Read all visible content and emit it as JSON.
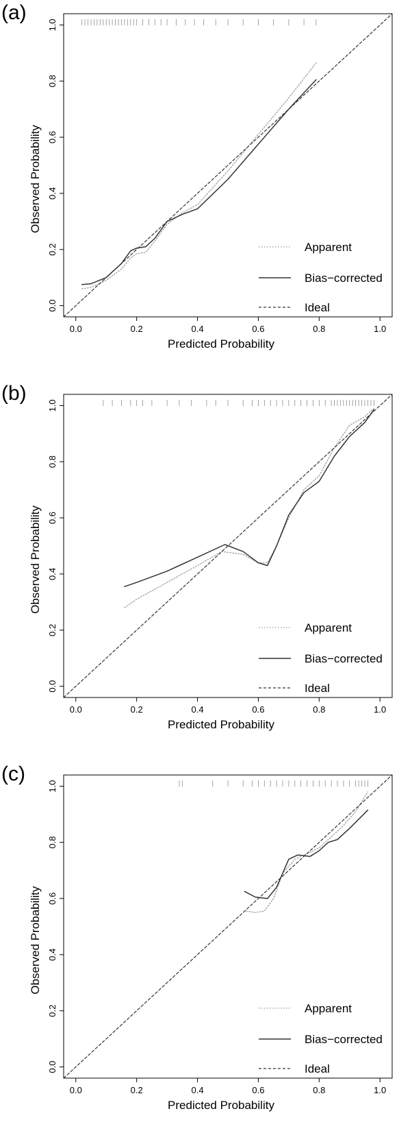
{
  "chart_data": [
    {
      "panel_label": "(a)",
      "type": "line",
      "xlabel": "Predicted Probability",
      "ylabel": "Observed  Probability",
      "xlim": [
        -0.04,
        1.04
      ],
      "ylim": [
        -0.04,
        1.04
      ],
      "x_ticks": [
        "0.0",
        "0.2",
        "0.4",
        "0.6",
        "0.8",
        "1.0"
      ],
      "y_ticks": [
        "0.0",
        "0.2",
        "0.4",
        "0.6",
        "0.8",
        "1.0"
      ],
      "legend_position": "bottom-right",
      "series": [
        {
          "name": "Apparent",
          "style": "dotted",
          "x": [
            0.02,
            0.05,
            0.1,
            0.15,
            0.18,
            0.2,
            0.23,
            0.26,
            0.3,
            0.35,
            0.4,
            0.5,
            0.6,
            0.7,
            0.79
          ],
          "y": [
            0.06,
            0.065,
            0.09,
            0.13,
            0.17,
            0.185,
            0.19,
            0.23,
            0.29,
            0.33,
            0.36,
            0.48,
            0.61,
            0.74,
            0.865
          ]
        },
        {
          "name": "Bias−corrected",
          "style": "solid",
          "x": [
            0.02,
            0.05,
            0.1,
            0.15,
            0.18,
            0.2,
            0.23,
            0.26,
            0.3,
            0.35,
            0.4,
            0.5,
            0.6,
            0.7,
            0.79
          ],
          "y": [
            0.075,
            0.078,
            0.1,
            0.15,
            0.195,
            0.205,
            0.21,
            0.24,
            0.3,
            0.325,
            0.345,
            0.45,
            0.575,
            0.7,
            0.805
          ]
        },
        {
          "name": "Ideal",
          "style": "dashed",
          "x": [
            -0.04,
            1.04
          ],
          "y": [
            -0.04,
            1.04
          ]
        }
      ],
      "rug": [
        0.02,
        0.03,
        0.04,
        0.05,
        0.06,
        0.07,
        0.08,
        0.09,
        0.1,
        0.11,
        0.12,
        0.13,
        0.14,
        0.15,
        0.16,
        0.17,
        0.18,
        0.19,
        0.2,
        0.22,
        0.24,
        0.26,
        0.28,
        0.3,
        0.33,
        0.36,
        0.39,
        0.42,
        0.46,
        0.5,
        0.55,
        0.6,
        0.65,
        0.7,
        0.75,
        0.79
      ]
    },
    {
      "panel_label": "(b)",
      "type": "line",
      "xlabel": "Predicted Probability",
      "ylabel": "Observed  Probability",
      "xlim": [
        -0.04,
        1.04
      ],
      "ylim": [
        -0.04,
        1.04
      ],
      "x_ticks": [
        "0.0",
        "0.2",
        "0.4",
        "0.6",
        "0.8",
        "1.0"
      ],
      "y_ticks": [
        "0.0",
        "0.2",
        "0.4",
        "0.6",
        "0.8",
        "1.0"
      ],
      "legend_position": "bottom-right",
      "series": [
        {
          "name": "Apparent",
          "style": "dotted",
          "x": [
            0.16,
            0.2,
            0.3,
            0.4,
            0.48,
            0.55,
            0.6,
            0.63,
            0.66,
            0.7,
            0.75,
            0.8,
            0.85,
            0.9,
            0.95,
            0.98
          ],
          "y": [
            0.28,
            0.31,
            0.37,
            0.43,
            0.48,
            0.47,
            0.44,
            0.44,
            0.5,
            0.6,
            0.7,
            0.75,
            0.85,
            0.93,
            0.96,
            0.99
          ]
        },
        {
          "name": "Bias−corrected",
          "style": "solid",
          "x": [
            0.16,
            0.2,
            0.3,
            0.4,
            0.49,
            0.55,
            0.6,
            0.63,
            0.66,
            0.7,
            0.75,
            0.8,
            0.85,
            0.9,
            0.95,
            0.98
          ],
          "y": [
            0.355,
            0.37,
            0.41,
            0.46,
            0.505,
            0.48,
            0.44,
            0.43,
            0.5,
            0.61,
            0.69,
            0.73,
            0.82,
            0.89,
            0.94,
            0.985
          ]
        },
        {
          "name": "Ideal",
          "style": "dashed",
          "x": [
            -0.04,
            1.04
          ],
          "y": [
            -0.04,
            1.04
          ]
        }
      ],
      "rug": [
        0.09,
        0.12,
        0.15,
        0.18,
        0.2,
        0.22,
        0.25,
        0.3,
        0.34,
        0.38,
        0.43,
        0.46,
        0.5,
        0.55,
        0.58,
        0.6,
        0.62,
        0.64,
        0.66,
        0.68,
        0.7,
        0.72,
        0.74,
        0.76,
        0.78,
        0.8,
        0.82,
        0.84,
        0.85,
        0.86,
        0.87,
        0.88,
        0.89,
        0.9,
        0.91,
        0.92,
        0.93,
        0.94,
        0.95,
        0.96,
        0.97,
        0.98
      ]
    },
    {
      "panel_label": "(c)",
      "type": "line",
      "xlabel": "Predicted Probability",
      "ylabel": "Observed  Probability",
      "xlim": [
        -0.04,
        1.04
      ],
      "ylim": [
        -0.04,
        1.04
      ],
      "x_ticks": [
        "0.0",
        "0.2",
        "0.4",
        "0.6",
        "0.8",
        "1.0"
      ],
      "y_ticks": [
        "0.0",
        "0.2",
        "0.4",
        "0.6",
        "0.8",
        "1.0"
      ],
      "legend_position": "bottom-right",
      "series": [
        {
          "name": "Apparent",
          "style": "dotted",
          "x": [
            0.56,
            0.59,
            0.62,
            0.65,
            0.68,
            0.72,
            0.76,
            0.8,
            0.84,
            0.88,
            0.92,
            0.96
          ],
          "y": [
            0.555,
            0.55,
            0.555,
            0.6,
            0.69,
            0.74,
            0.76,
            0.78,
            0.82,
            0.86,
            0.91,
            0.98
          ]
        },
        {
          "name": "Bias−corrected",
          "style": "solid",
          "x": [
            0.555,
            0.59,
            0.63,
            0.66,
            0.7,
            0.73,
            0.77,
            0.8,
            0.83,
            0.86,
            0.9,
            0.96
          ],
          "y": [
            0.625,
            0.605,
            0.6,
            0.64,
            0.74,
            0.755,
            0.75,
            0.77,
            0.8,
            0.81,
            0.85,
            0.915
          ]
        },
        {
          "name": "Ideal",
          "style": "dashed",
          "x": [
            -0.04,
            1.04
          ],
          "y": [
            -0.04,
            1.04
          ]
        }
      ],
      "rug": [
        0.34,
        0.35,
        0.45,
        0.5,
        0.55,
        0.58,
        0.6,
        0.62,
        0.64,
        0.66,
        0.68,
        0.7,
        0.72,
        0.74,
        0.76,
        0.78,
        0.8,
        0.82,
        0.84,
        0.86,
        0.88,
        0.9,
        0.92,
        0.93,
        0.94,
        0.95,
        0.96
      ]
    }
  ]
}
